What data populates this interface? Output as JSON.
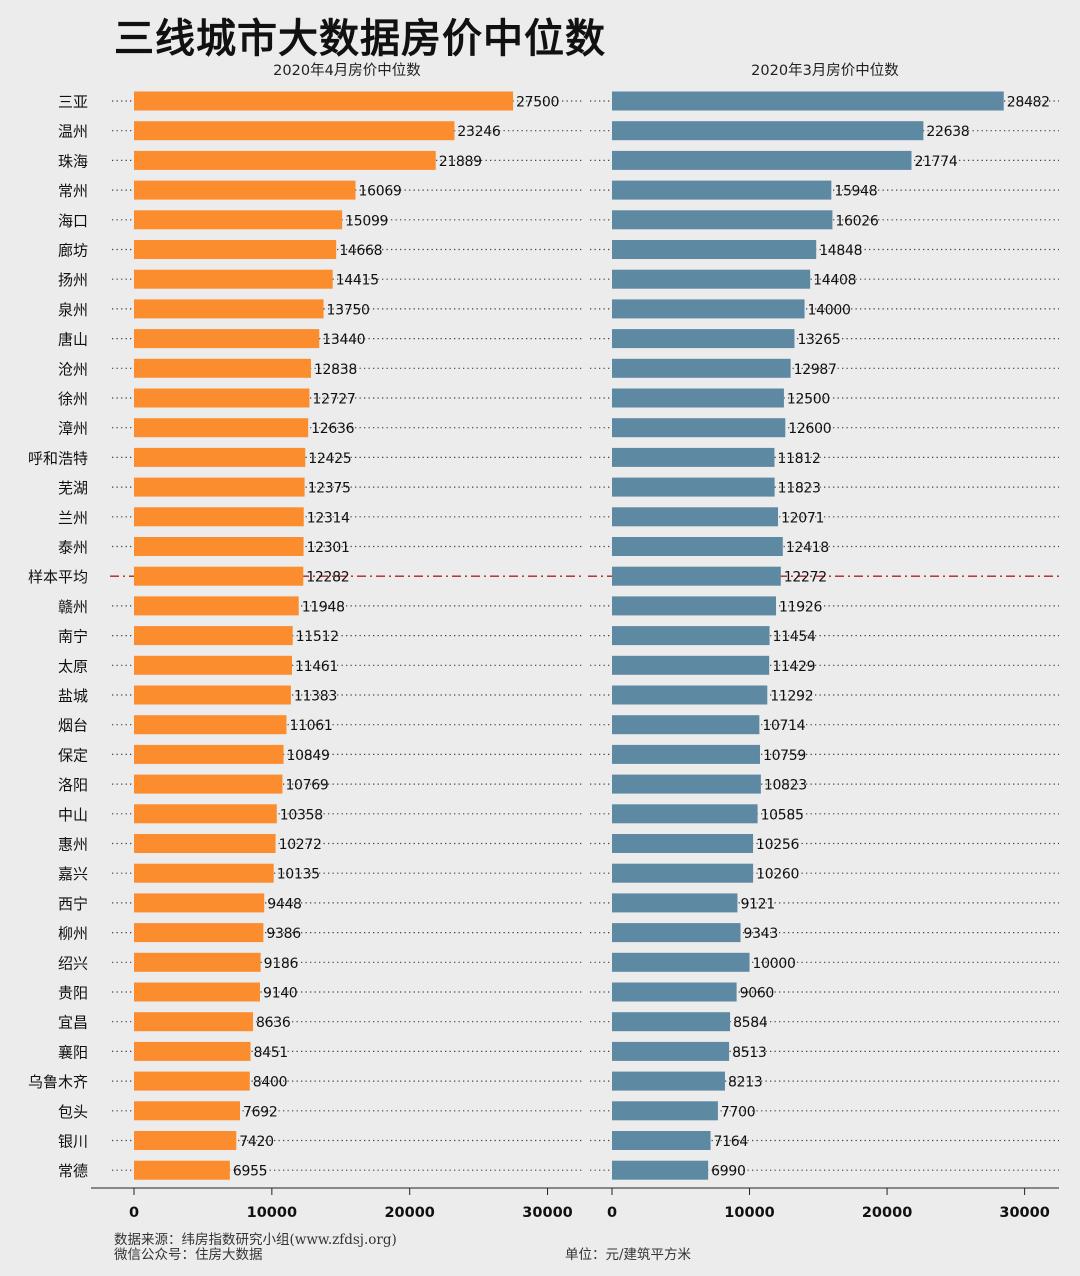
{
  "title": "三线城市大数据房价中位数",
  "footer": {
    "source": "数据来源：纬房指数研究小组(www.zfdsj.org)",
    "wechat": "微信公众号：住房大数据",
    "unit": "单位：元/建筑平方米"
  },
  "colors": {
    "april": "#fc8d2e",
    "march": "#5e89a3",
    "average_line": "#b22222"
  },
  "chart_data": {
    "type": "bar",
    "orientation": "horizontal",
    "categories": [
      "三亚",
      "温州",
      "珠海",
      "常州",
      "海口",
      "廊坊",
      "扬州",
      "泉州",
      "唐山",
      "沧州",
      "徐州",
      "漳州",
      "呼和浩特",
      "芜湖",
      "兰州",
      "泰州",
      "样本平均",
      "赣州",
      "南宁",
      "太原",
      "盐城",
      "烟台",
      "保定",
      "洛阳",
      "中山",
      "惠州",
      "嘉兴",
      "西宁",
      "柳州",
      "绍兴",
      "贵阳",
      "宜昌",
      "襄阳",
      "乌鲁木齐",
      "包头",
      "银川",
      "常德"
    ],
    "highlight_category": "样本平均",
    "panels": [
      {
        "title": "2020年4月房价中位数",
        "values": [
          27500,
          23246,
          21889,
          16069,
          15099,
          14668,
          14415,
          13750,
          13440,
          12838,
          12727,
          12636,
          12425,
          12375,
          12314,
          12301,
          12282,
          11948,
          11512,
          11461,
          11383,
          11061,
          10849,
          10769,
          10358,
          10272,
          10135,
          9448,
          9386,
          9186,
          9140,
          8636,
          8451,
          8400,
          7692,
          7420,
          6955
        ],
        "xlim": [
          0,
          32500
        ],
        "xticks": [
          0,
          10000,
          20000,
          30000
        ]
      },
      {
        "title": "2020年3月房价中位数",
        "values": [
          28482,
          22638,
          21774,
          15948,
          16026,
          14848,
          14408,
          14000,
          13265,
          12987,
          12500,
          12600,
          11812,
          11823,
          12071,
          12418,
          12272,
          11926,
          11454,
          11429,
          11292,
          10714,
          10759,
          10823,
          10585,
          10256,
          10260,
          9121,
          9343,
          10000,
          9060,
          8584,
          8513,
          8213,
          7700,
          7164,
          6990
        ],
        "xlim": [
          0,
          32500
        ],
        "xticks": [
          0,
          10000,
          20000,
          30000
        ]
      }
    ],
    "xlabel": "",
    "ylabel": "",
    "grid": "dotted lines per category"
  }
}
